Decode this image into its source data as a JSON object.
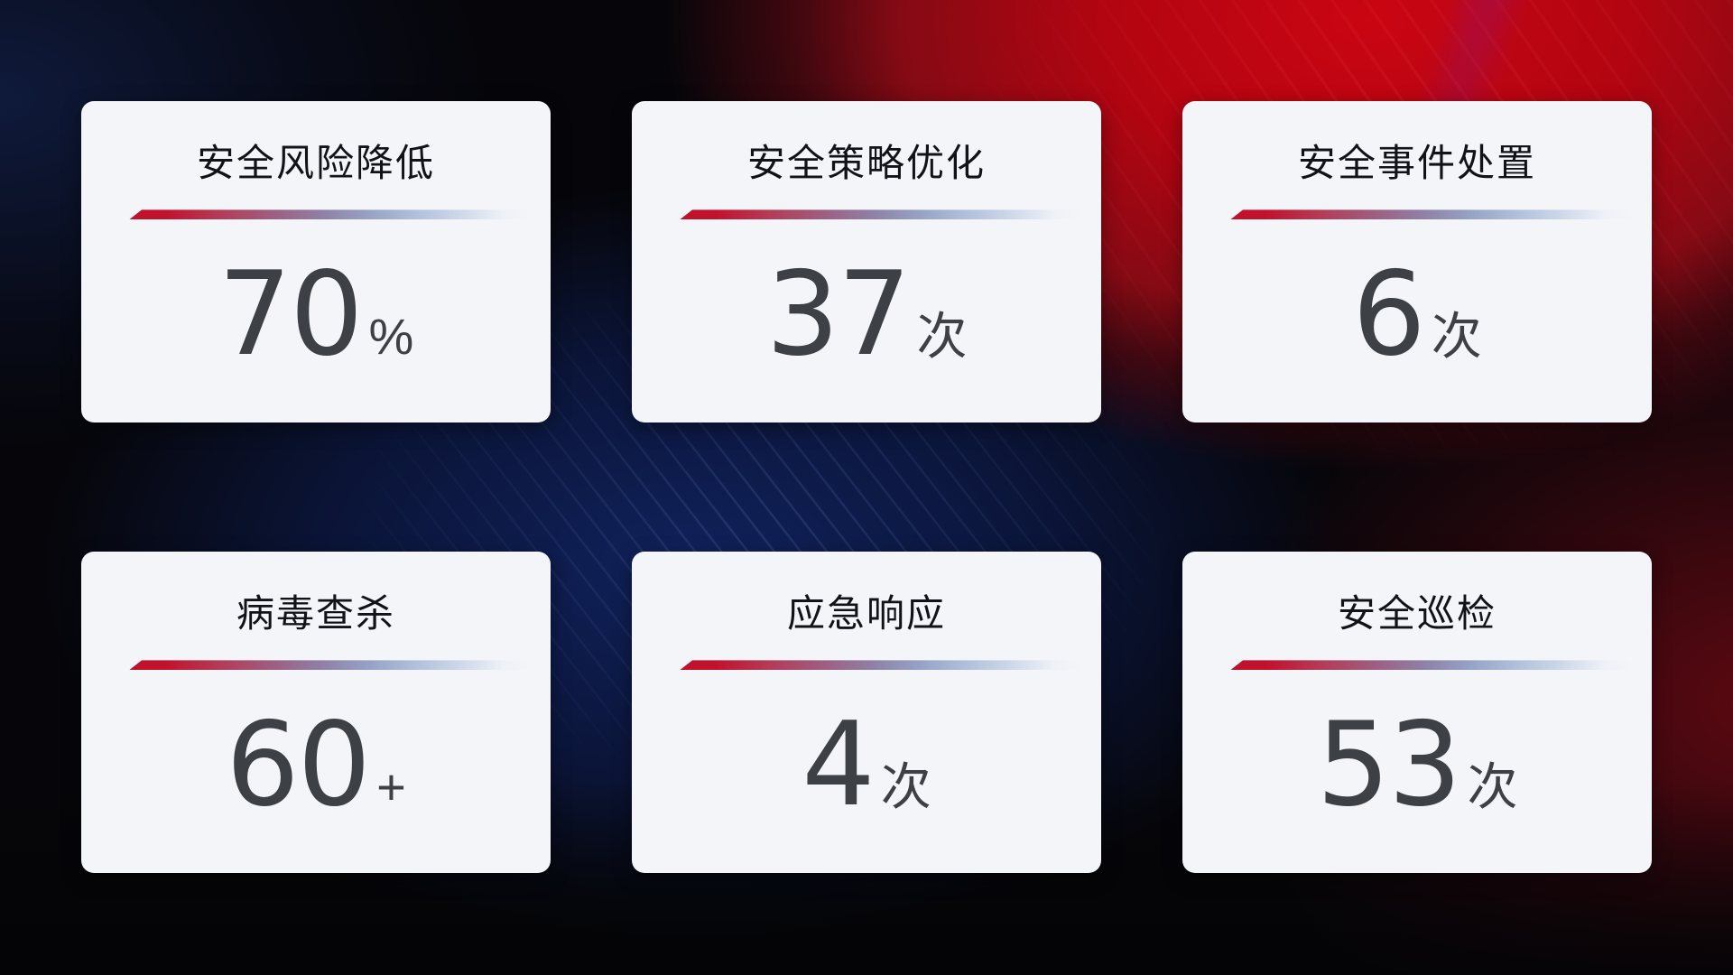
{
  "dashboard": {
    "cards": [
      {
        "title": "安全风险降低",
        "value": "70",
        "unit": "%"
      },
      {
        "title": "安全策略优化",
        "value": "37",
        "unit": "次"
      },
      {
        "title": "安全事件处置",
        "value": "6",
        "unit": "次"
      },
      {
        "title": "病毒查杀",
        "value": "60",
        "unit": "+"
      },
      {
        "title": "应急响应",
        "value": "4",
        "unit": "次"
      },
      {
        "title": "安全巡检",
        "value": "53",
        "unit": "次"
      }
    ],
    "accent_colors": {
      "divider_red": "#c1122d",
      "divider_blue": "#aabdd8",
      "card_background": "#f4f5f8",
      "title_text": "#121318",
      "value_text": "#3d4045",
      "background_red": "#c00511",
      "background_navy": "#0e1a3c",
      "background_blue": "#12235e"
    }
  }
}
